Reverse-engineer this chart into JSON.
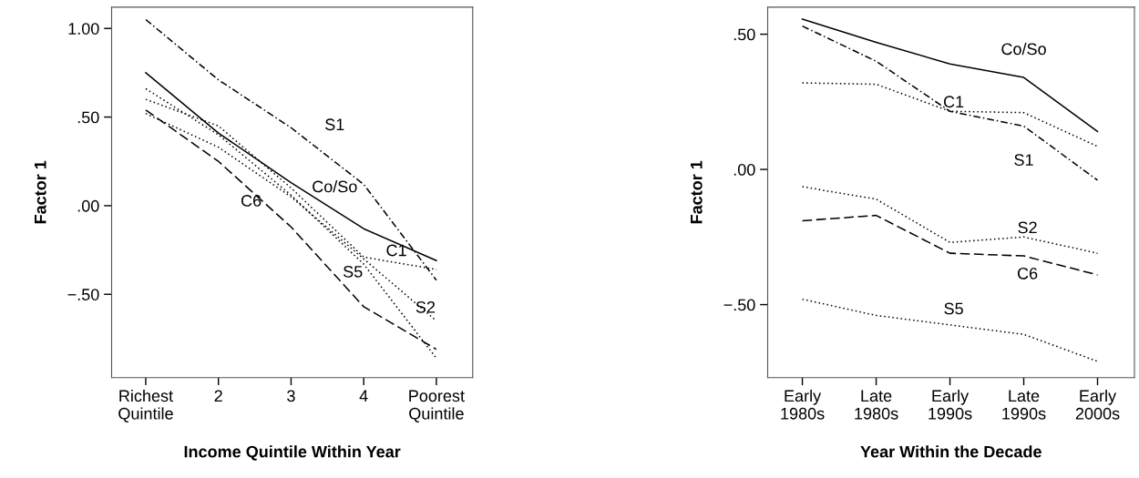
{
  "chart_data": [
    {
      "type": "line",
      "xlabel": "Income Quintile Within Year",
      "ylabel": "Factor 1",
      "categories": [
        "Richest\nQuintile",
        "2",
        "3",
        "4",
        "Poorest\nQuintile"
      ],
      "ylim": [
        -0.97,
        1.12
      ],
      "yticks": [
        {
          "value": 1.0,
          "label": "1.00"
        },
        {
          "value": 0.5,
          "label": ".50"
        },
        {
          "value": 0.0,
          "label": ".00"
        },
        {
          "value": -0.5,
          "label": "−.50"
        }
      ],
      "grid": false,
      "legend": false,
      "series": [
        {
          "name": "S1",
          "color": "#000000",
          "line_style": "dashdot",
          "values": [
            1.05,
            0.71,
            0.44,
            0.12,
            -0.42
          ]
        },
        {
          "name": "Co/So",
          "color": "#000000",
          "line_style": "solid",
          "values": [
            0.75,
            0.41,
            0.13,
            -0.13,
            -0.31
          ]
        },
        {
          "name": "C6",
          "color": "#000000",
          "line_style": "dashed",
          "values": [
            0.54,
            0.25,
            -0.12,
            -0.57,
            -0.81
          ]
        },
        {
          "name": "C1",
          "color": "#000000",
          "line_style": "dotted",
          "values": [
            0.6,
            0.45,
            0.1,
            -0.29,
            -0.36
          ]
        },
        {
          "name": "S5",
          "color": "#000000",
          "line_style": "dotted",
          "values": [
            0.66,
            0.4,
            0.06,
            -0.33,
            -0.86
          ]
        },
        {
          "name": "S2",
          "color": "#000000",
          "line_style": "dotted",
          "values": [
            0.52,
            0.33,
            0.05,
            -0.3,
            -0.65
          ]
        }
      ]
    },
    {
      "type": "line",
      "xlabel": "Year Within the Decade",
      "ylabel": "Factor 1",
      "categories": [
        "Early\n1980s",
        "Late\n1980s",
        "Early\n1990s",
        "Late\n1990s",
        "Early\n2000s"
      ],
      "ylim": [
        -0.77,
        0.6
      ],
      "yticks": [
        {
          "value": 0.5,
          "label": ".50"
        },
        {
          "value": 0.0,
          "label": ".00"
        },
        {
          "value": -0.5,
          "label": "−.50"
        }
      ],
      "grid": false,
      "legend": false,
      "series": [
        {
          "name": "Co/So",
          "color": "#000000",
          "line_style": "solid",
          "values": [
            0.556,
            0.47,
            0.39,
            0.34,
            0.14
          ]
        },
        {
          "name": "C1",
          "color": "#000000",
          "line_style": "dotted",
          "values": [
            0.32,
            0.315,
            0.215,
            0.21,
            0.085
          ]
        },
        {
          "name": "S1",
          "color": "#000000",
          "line_style": "dashdot",
          "values": [
            0.53,
            0.4,
            0.215,
            0.16,
            -0.04
          ]
        },
        {
          "name": "S2",
          "color": "#000000",
          "line_style": "dotted",
          "values": [
            -0.064,
            -0.11,
            -0.27,
            -0.25,
            -0.31
          ]
        },
        {
          "name": "C6",
          "color": "#000000",
          "line_style": "dashed",
          "values": [
            -0.19,
            -0.17,
            -0.31,
            -0.32,
            -0.39
          ]
        },
        {
          "name": "S5",
          "color": "#000000",
          "line_style": "dotted",
          "values": [
            -0.48,
            -0.54,
            -0.575,
            -0.61,
            -0.71
          ]
        }
      ]
    }
  ]
}
